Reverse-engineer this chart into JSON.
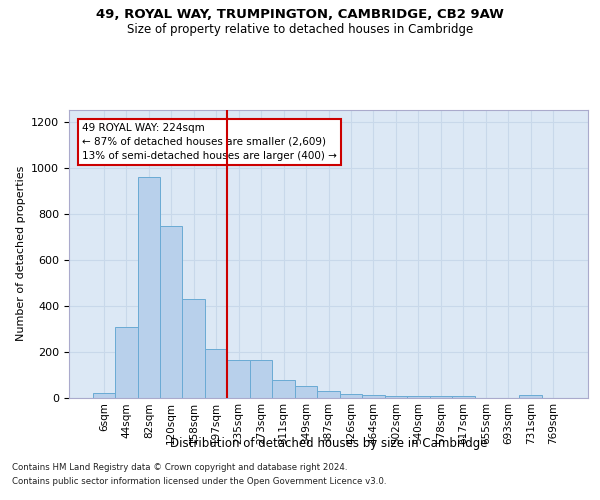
{
  "title_line1": "49, ROYAL WAY, TRUMPINGTON, CAMBRIDGE, CB2 9AW",
  "title_line2": "Size of property relative to detached houses in Cambridge",
  "xlabel": "Distribution of detached houses by size in Cambridge",
  "ylabel": "Number of detached properties",
  "bar_labels": [
    "6sqm",
    "44sqm",
    "82sqm",
    "120sqm",
    "158sqm",
    "197sqm",
    "235sqm",
    "273sqm",
    "311sqm",
    "349sqm",
    "387sqm",
    "426sqm",
    "464sqm",
    "502sqm",
    "540sqm",
    "578sqm",
    "617sqm",
    "655sqm",
    "693sqm",
    "731sqm",
    "769sqm"
  ],
  "bar_values": [
    20,
    305,
    960,
    745,
    430,
    210,
    165,
    165,
    75,
    50,
    30,
    15,
    10,
    5,
    5,
    5,
    5,
    0,
    0,
    10,
    0
  ],
  "bar_color": "#b8d0eb",
  "bar_edge_color": "#6aaad4",
  "vline_x_index": 6.0,
  "vline_color": "#cc0000",
  "annotation_line1": "49 ROYAL WAY: 224sqm",
  "annotation_line2": "← 87% of detached houses are smaller (2,609)",
  "annotation_line3": "13% of semi-detached houses are larger (400) →",
  "annotation_box_edge_color": "#cc0000",
  "ylim": [
    0,
    1250
  ],
  "yticks": [
    0,
    200,
    400,
    600,
    800,
    1000,
    1200
  ],
  "grid_color": "#c8d8ea",
  "plot_bg_color": "#dce8f5",
  "footnote1": "Contains HM Land Registry data © Crown copyright and database right 2024.",
  "footnote2": "Contains public sector information licensed under the Open Government Licence v3.0."
}
